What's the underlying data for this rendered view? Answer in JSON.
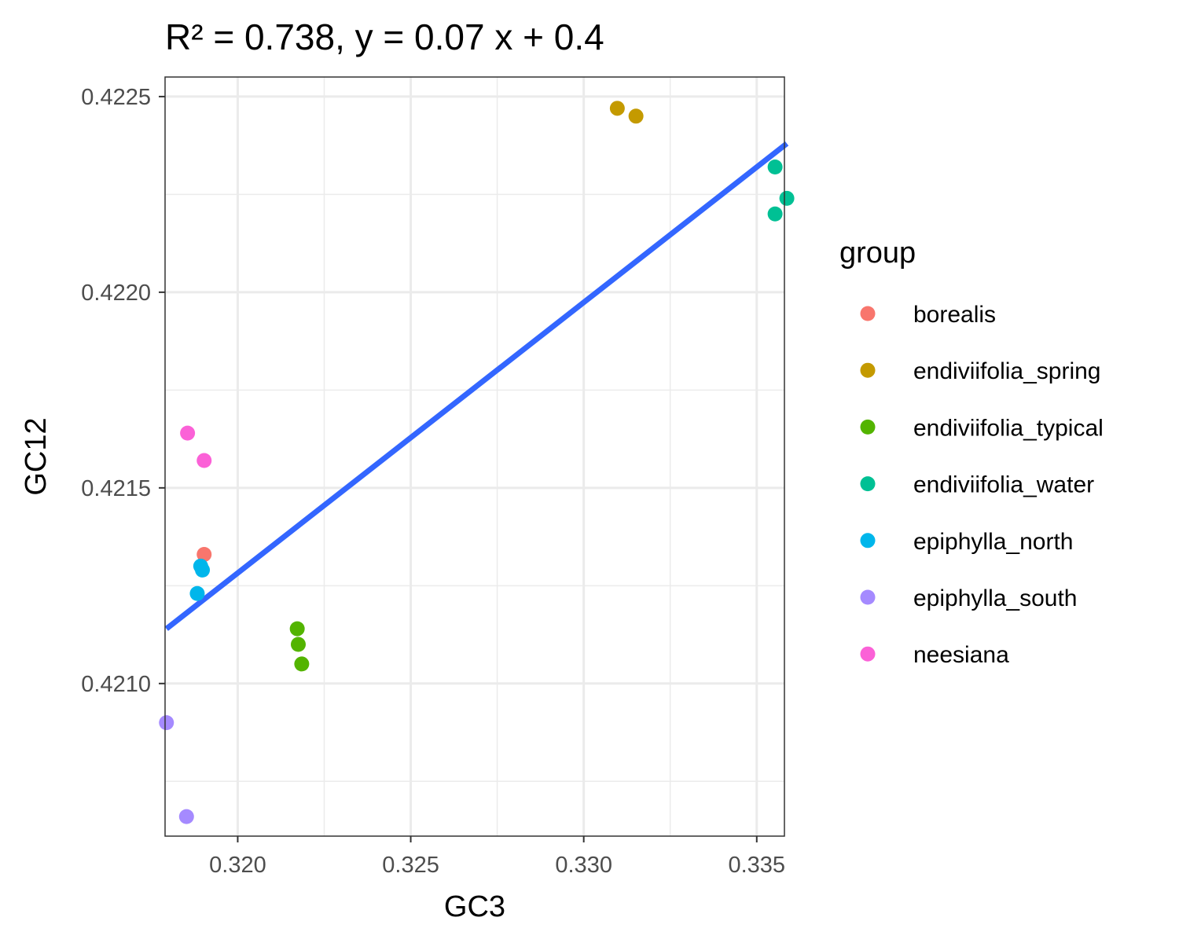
{
  "chart_data": {
    "type": "scatter",
    "title": "R² = 0.738, y = 0.07 x + 0.4",
    "xlabel": "GC3",
    "ylabel": "GC12",
    "xlim": [
      0.3179,
      0.3358
    ],
    "ylim": [
      0.42061,
      0.42255
    ],
    "x_ticks": [
      0.32,
      0.325,
      0.33,
      0.335
    ],
    "x_tick_labels": [
      "0.320",
      "0.325",
      "0.330",
      "0.335"
    ],
    "y_ticks": [
      0.421,
      0.4215,
      0.422,
      0.4225
    ],
    "y_tick_labels": [
      "0.4210",
      "0.4215",
      "0.4220",
      "0.4225"
    ],
    "grid": true,
    "legend": {
      "title": "group",
      "placement": "right"
    },
    "series": [
      {
        "name": "borealis",
        "color": "#F8766D",
        "points": [
          [
            0.31903,
            0.42133
          ]
        ]
      },
      {
        "name": "endiviifolia_spring",
        "color": "#C49A00",
        "points": [
          [
            0.33097,
            0.42247
          ],
          [
            0.33151,
            0.42245
          ]
        ]
      },
      {
        "name": "endiviifolia_typical",
        "color": "#53B400",
        "points": [
          [
            0.32172,
            0.42114
          ],
          [
            0.32175,
            0.4211
          ],
          [
            0.32185,
            0.42105
          ]
        ]
      },
      {
        "name": "endiviifolia_water",
        "color": "#00C094",
        "points": [
          [
            0.33553,
            0.42232
          ],
          [
            0.33587,
            0.42224
          ],
          [
            0.33553,
            0.4222
          ]
        ]
      },
      {
        "name": "epiphylla_north",
        "color": "#00B6EB",
        "points": [
          [
            0.31893,
            0.4213
          ],
          [
            0.31898,
            0.42129
          ],
          [
            0.31883,
            0.42123
          ]
        ]
      },
      {
        "name": "epiphylla_south",
        "color": "#A58AFF",
        "points": [
          [
            0.31794,
            0.4209
          ],
          [
            0.31852,
            0.42066
          ]
        ]
      },
      {
        "name": "neesiana",
        "color": "#FB61D7",
        "points": [
          [
            0.31855,
            0.42164
          ],
          [
            0.31903,
            0.42157
          ]
        ]
      }
    ],
    "regression": {
      "color": "#3366FF",
      "x": [
        0.31794,
        0.33587
      ],
      "y": [
        0.42114,
        0.42238
      ]
    }
  }
}
